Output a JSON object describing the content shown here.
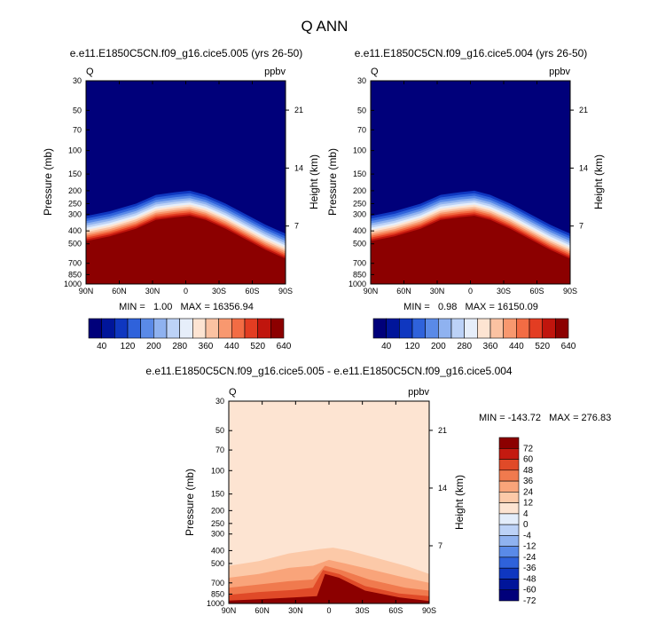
{
  "title": "Q ANN",
  "colors": {
    "abs_scale": [
      "#00007a",
      "#00159a",
      "#0f37c0",
      "#2f62db",
      "#5a8ae8",
      "#8fb2f0",
      "#bcd2f7",
      "#e6eefa",
      "#fde4d2",
      "#fbc2a2",
      "#f8986f",
      "#f36c44",
      "#e33d22",
      "#c0150d",
      "#8c0000"
    ],
    "diff_scale": [
      "#00007a",
      "#00159a",
      "#0f37c0",
      "#2f62db",
      "#5a8ae8",
      "#8fb2f0",
      "#bcd2f7",
      "#e3edfb",
      "#fde4d2",
      "#fcc9a8",
      "#f9a47a",
      "#f07a4e",
      "#e04a28",
      "#c41a10",
      "#8c0000"
    ]
  },
  "chart_data": [
    {
      "type": "heatmap",
      "title": "e.e11.E1850C5CN.f09_g16.cice5.005 (yrs 26-50)",
      "left_label": "Q",
      "right_label": "ppbv",
      "ylabel": "Pressure (mb)",
      "ylabel_right": "Height (km)",
      "x_ticks": [
        "90N",
        "60N",
        "30N",
        "0",
        "30S",
        "60S",
        "90S"
      ],
      "y_ticks": [
        "30",
        "50",
        "70",
        "100",
        "150",
        "200",
        "250",
        "300",
        "400",
        "500",
        "700",
        "850",
        "1000"
      ],
      "y_ticks_right": [
        "21",
        "14",
        "7"
      ],
      "ylim": [
        1000,
        30
      ],
      "stats_text": "MIN =   1.00   MAX = 16356.94",
      "colorbar_labels": [
        "40",
        "120",
        "200",
        "280",
        "360",
        "440",
        "520",
        "640"
      ]
    },
    {
      "type": "heatmap",
      "title": "e.e11.E1850C5CN.f09_g16.cice5.004 (yrs 26-50)",
      "left_label": "Q",
      "right_label": "ppbv",
      "ylabel": "Pressure (mb)",
      "ylabel_right": "Height (km)",
      "x_ticks": [
        "90N",
        "60N",
        "30N",
        "0",
        "30S",
        "60S",
        "90S"
      ],
      "y_ticks": [
        "30",
        "50",
        "70",
        "100",
        "150",
        "200",
        "250",
        "300",
        "400",
        "500",
        "700",
        "850",
        "1000"
      ],
      "y_ticks_right": [
        "21",
        "14",
        "7"
      ],
      "ylim": [
        1000,
        30
      ],
      "stats_text": "MIN =   0.98   MAX = 16150.09",
      "colorbar_labels": [
        "40",
        "120",
        "200",
        "280",
        "360",
        "440",
        "520",
        "640"
      ]
    },
    {
      "type": "heatmap",
      "title": "e.e11.E1850C5CN.f09_g16.cice5.005 - e.e11.E1850C5CN.f09_g16.cice5.004",
      "left_label": "Q",
      "right_label": "ppbv",
      "ylabel": "Pressure (mb)",
      "ylabel_right": "Height (km)",
      "x_ticks": [
        "90N",
        "60N",
        "30N",
        "0",
        "30S",
        "60S",
        "90S"
      ],
      "y_ticks": [
        "30",
        "50",
        "70",
        "100",
        "150",
        "200",
        "250",
        "300",
        "400",
        "500",
        "700",
        "850",
        "1000"
      ],
      "y_ticks_right": [
        "21",
        "14",
        "7"
      ],
      "ylim": [
        1000,
        30
      ],
      "stats_text": "MIN = -143.72   MAX = 276.83",
      "colorbar_labels": [
        "72",
        "60",
        "48",
        "36",
        "24",
        "12",
        "4",
        "0",
        "-4",
        "-12",
        "-24",
        "-36",
        "-48",
        "-60",
        "-72"
      ]
    }
  ]
}
